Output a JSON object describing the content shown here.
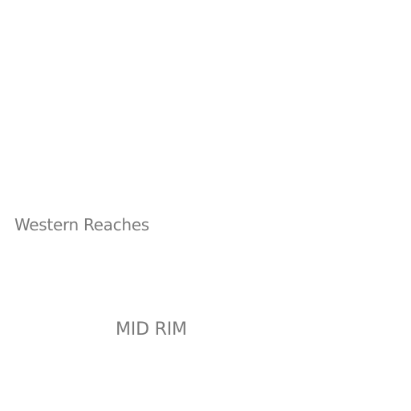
{
  "map": {
    "labels": {
      "region": "Western Reaches",
      "rim": "MID RIM"
    },
    "colors": {
      "background": "#ffffff",
      "label_text": "#7a7a7a"
    }
  }
}
